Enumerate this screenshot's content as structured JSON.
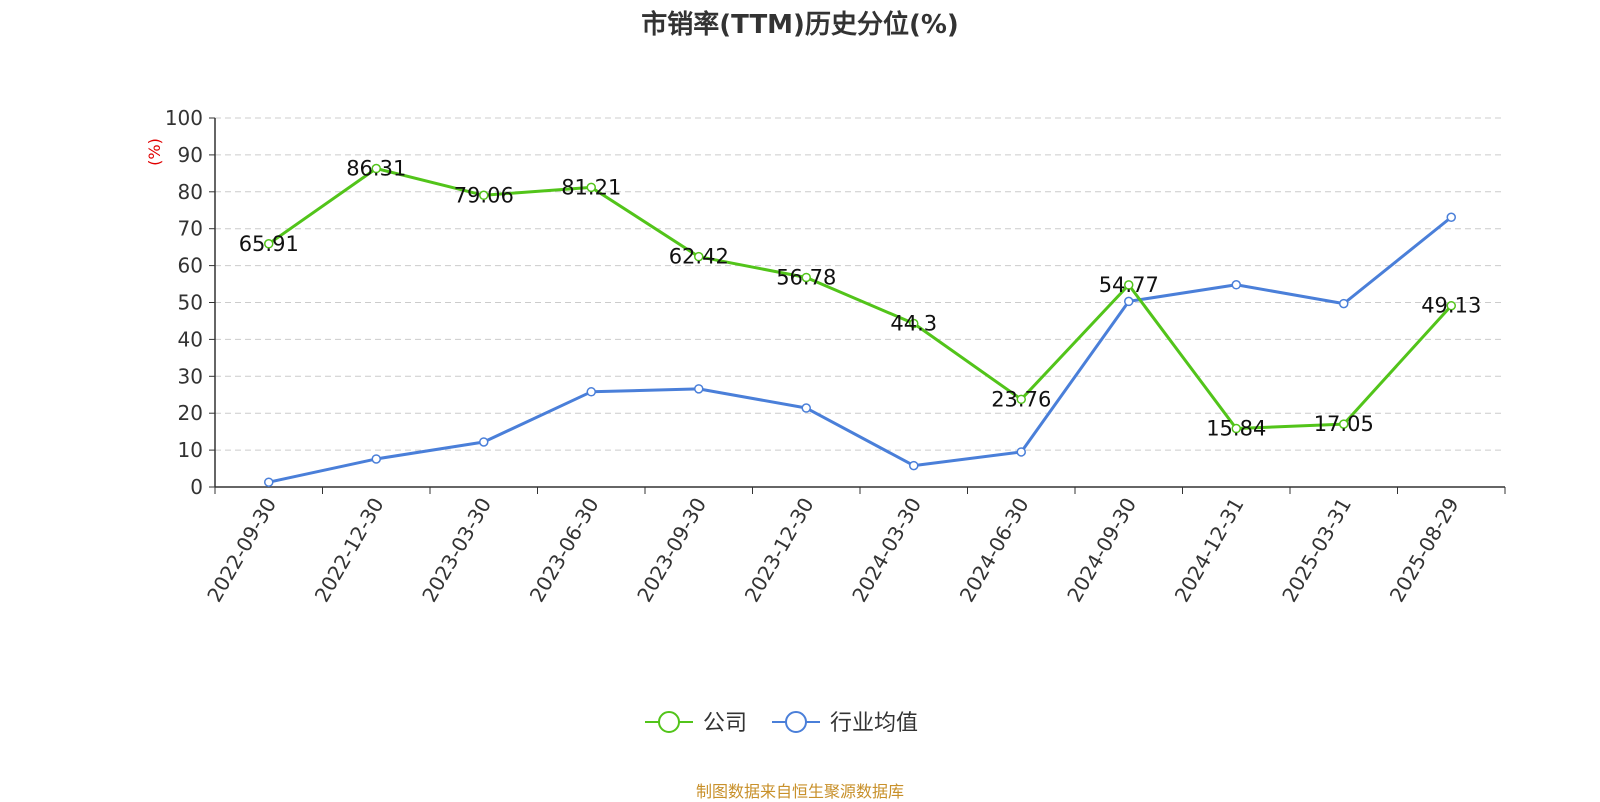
{
  "chart_data": {
    "type": "line",
    "title": "市销率(TTM)历史分位(%)",
    "ylabel": "(%)",
    "ylim": [
      0,
      100
    ],
    "yticks": [
      0,
      10,
      20,
      30,
      40,
      50,
      60,
      70,
      80,
      90,
      100
    ],
    "grid": true,
    "legend_position": "bottom-center",
    "categories": [
      "2022-09-30",
      "2022-12-30",
      "2023-03-30",
      "2023-06-30",
      "2023-09-30",
      "2023-12-30",
      "2024-03-30",
      "2024-06-30",
      "2024-09-30",
      "2024-12-31",
      "2025-03-31",
      "2025-08-29"
    ],
    "series": [
      {
        "name": "公司",
        "color": "#52c41a",
        "show_labels": true,
        "values": [
          65.91,
          86.31,
          79.06,
          81.21,
          62.42,
          56.78,
          44.3,
          23.76,
          54.77,
          15.84,
          17.05,
          49.13
        ]
      },
      {
        "name": "行业均值",
        "color": "#4a7fd9",
        "show_labels": false,
        "values": [
          1.3,
          7.6,
          12.2,
          25.8,
          26.6,
          21.4,
          5.8,
          9.5,
          50.3,
          54.8,
          49.7,
          73.1
        ]
      }
    ],
    "source": "制图数据来自恒生聚源数据库"
  }
}
